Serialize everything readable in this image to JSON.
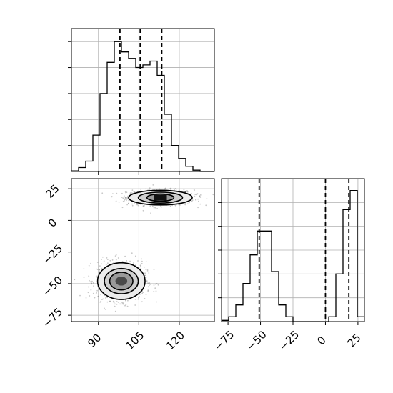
{
  "figure": {
    "type": "corner-plot",
    "background": "#ffffff",
    "grid": true,
    "grid_color": "#b0b0b0"
  },
  "chart_data": [
    {
      "type": "histogram",
      "panel": "top-left",
      "variable_axis": "x",
      "xlim": [
        80,
        133
      ],
      "bin_edges": [
        80,
        82.65,
        85.3,
        87.95,
        90.6,
        93.25,
        95.9,
        98.55,
        101.2,
        103.85,
        106.5,
        109.15,
        111.8,
        114.45,
        117.1,
        119.75,
        122.4,
        125.05,
        127.7,
        130.35,
        133
      ],
      "counts": [
        0.5,
        3,
        8,
        28,
        60,
        84,
        100,
        92,
        87,
        80,
        82,
        85,
        74,
        44,
        20,
        10,
        4,
        1,
        0,
        0
      ],
      "ylim": [
        0,
        110
      ],
      "y_tick_values": [
        20,
        40,
        60,
        80,
        100
      ],
      "y_tick_labels_shown": false,
      "quantile_lines": [
        98,
        105.5,
        113.5
      ],
      "line_color": "#000000"
    },
    {
      "type": "histogram",
      "panel": "bottom-right",
      "variable_axis": "y",
      "xlim": [
        -80,
        30
      ],
      "bin_edges": [
        -80,
        -74.5,
        -69,
        -63.5,
        -58,
        -52.5,
        -47,
        -41.5,
        -36,
        -30.5,
        -25,
        -19.5,
        -14,
        -8.5,
        -3,
        2.5,
        8,
        13.5,
        19,
        24.5,
        30
      ],
      "counts": [
        0.5,
        2,
        7,
        16,
        28,
        38,
        38,
        21,
        7,
        2,
        0,
        0,
        0,
        0,
        0,
        2,
        20,
        47,
        55,
        2
      ],
      "ylim": [
        0,
        60
      ],
      "y_tick_values": [
        10,
        20,
        30,
        40,
        50
      ],
      "y_tick_labels_shown": false,
      "quantile_lines": [
        -51,
        0,
        18
      ],
      "x_ticks": [
        -75,
        -50,
        -25,
        0,
        25
      ],
      "x_tick_labels": [
        "−75",
        "−50",
        "−25",
        "0",
        "25"
      ],
      "line_color": "#000000"
    },
    {
      "type": "2d-density",
      "panel": "bottom-left",
      "xlim": [
        80,
        133
      ],
      "ylim": [
        -80,
        33
      ],
      "x_ticks": [
        90,
        105,
        120
      ],
      "x_tick_labels": [
        "90",
        "105",
        "120"
      ],
      "y_ticks": [
        -75,
        -50,
        -25,
        0,
        25
      ],
      "y_tick_labels": [
        "−75",
        "−50",
        "−25",
        "0",
        "25"
      ],
      "clusters": [
        {
          "center_x": 113,
          "center_y": 18,
          "contour_half_widths_x": [
            11.8,
            8.2,
            5.0,
            2.3
          ],
          "contour_half_widths_y": [
            5.8,
            4.3,
            2.9,
            1.2
          ]
        },
        {
          "center_x": 98.5,
          "center_y": -48,
          "contour_half_widths_x": [
            8.8,
            6.3,
            4.3,
            2.2
          ],
          "contour_half_widths_y": [
            14.5,
            10.0,
            7.0,
            3.5
          ]
        }
      ],
      "contour_color": "#000000",
      "point_color": "#000000"
    }
  ]
}
